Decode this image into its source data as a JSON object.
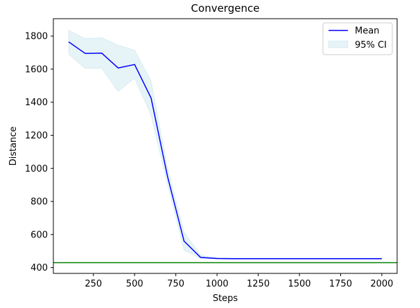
{
  "chart_data": {
    "type": "line",
    "title": "Convergence",
    "xlabel": "Steps",
    "ylabel": "Distance",
    "xlim": [
      7,
      2093
    ],
    "ylim": [
      365,
      1905
    ],
    "xticks": [
      250,
      500,
      750,
      1000,
      1250,
      1500,
      1750,
      2000
    ],
    "yticks": [
      400,
      600,
      800,
      1000,
      1200,
      1400,
      1600,
      1800
    ],
    "grid": false,
    "legend_position": "top-right",
    "x": [
      100,
      200,
      300,
      400,
      500,
      600,
      700,
      800,
      900,
      1000,
      1100,
      1200,
      1300,
      1400,
      1500,
      1600,
      1700,
      1800,
      1900,
      2000
    ],
    "series": [
      {
        "name": "Mean",
        "kind": "line",
        "color": "#0000ff",
        "values": [
          1765,
          1695,
          1697,
          1607,
          1628,
          1425,
          950,
          560,
          462,
          455,
          454,
          454,
          454,
          454,
          454,
          454,
          454,
          454,
          454,
          454
        ]
      },
      {
        "name": "95% CI",
        "kind": "band",
        "color": "#add8e6",
        "lower": [
          1690,
          1605,
          1605,
          1465,
          1545,
          1320,
          900,
          505,
          455,
          452,
          451,
          451,
          451,
          451,
          451,
          451,
          451,
          451,
          451,
          451
        ],
        "upper": [
          1835,
          1785,
          1790,
          1745,
          1715,
          1530,
          1000,
          615,
          475,
          460,
          458,
          458,
          458,
          458,
          458,
          458,
          458,
          458,
          458,
          458
        ]
      }
    ],
    "hlines": [
      {
        "y": 430,
        "color": "#008000"
      }
    ]
  }
}
